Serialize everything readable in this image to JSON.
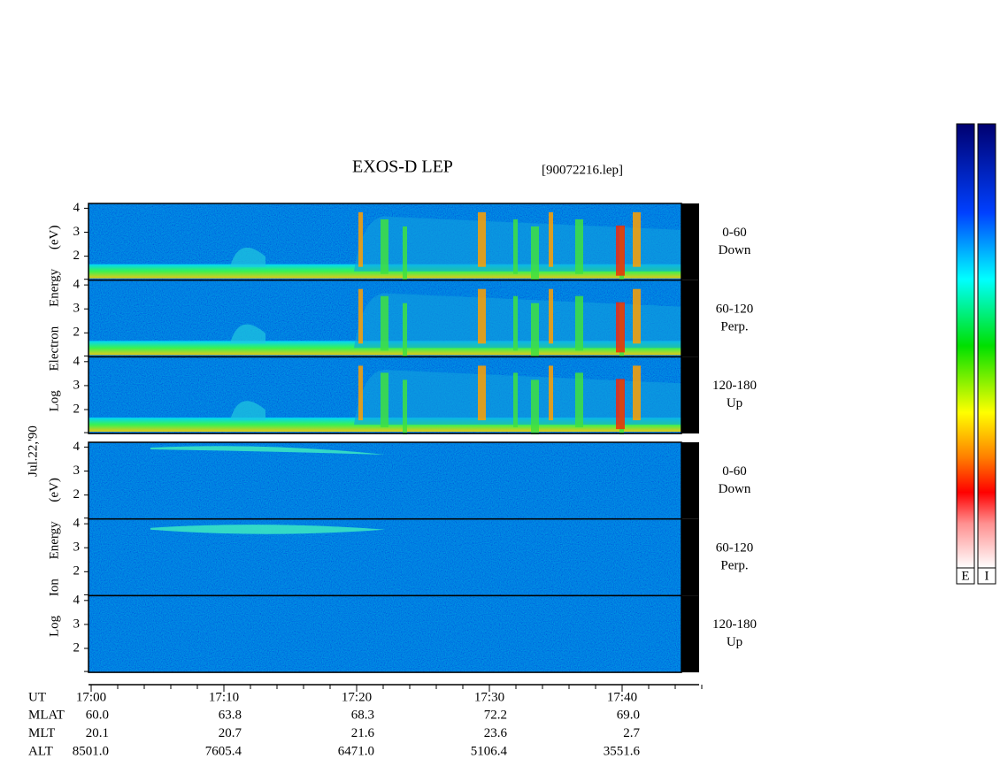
{
  "title": "EXOS-D LEP",
  "file": "[90072216.lep]",
  "date": "Jul.22,'90",
  "colorbar_labels": [
    "E",
    "I"
  ],
  "ylim": [
    1,
    4.2
  ],
  "yticks": [
    2,
    3,
    4
  ],
  "groups": [
    {
      "axis_label": "Log Electron Energy (eV)",
      "channels": [
        [
          "0-60",
          "Down"
        ],
        [
          "60-120",
          "Perp."
        ],
        [
          "120-180",
          "Up"
        ]
      ]
    },
    {
      "axis_label": "Log Ion Energy (eV)",
      "channels": [
        [
          "0-60",
          "Down"
        ],
        [
          "60-120",
          "Perp."
        ],
        [
          "120-180",
          "Up"
        ]
      ]
    }
  ],
  "time_ticks": [
    "17:00",
    "17:10",
    "17:20",
    "17:30",
    "17:40"
  ],
  "ut_label": "UT",
  "ephemeris": [
    {
      "name": "MLAT",
      "values": [
        "60.0",
        "63.8",
        "68.3",
        "72.2",
        "69.0"
      ]
    },
    {
      "name": "MLT",
      "values": [
        "20.1",
        "20.7",
        "21.6",
        "23.6",
        "2.7"
      ]
    },
    {
      "name": "ALT",
      "values": [
        "8501.0",
        "7605.4",
        "6471.0",
        "5106.4",
        "3551.6"
      ]
    }
  ]
}
